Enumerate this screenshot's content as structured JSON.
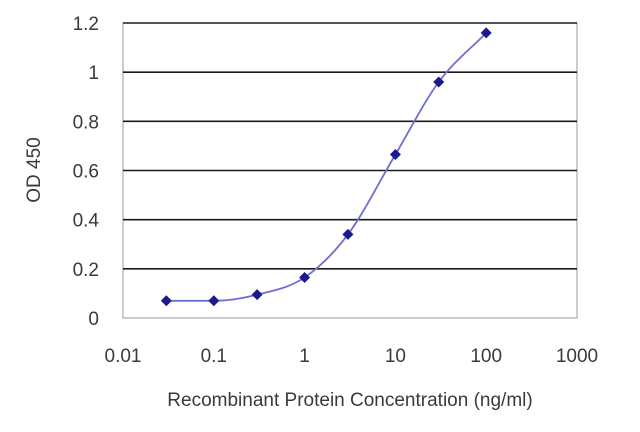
{
  "chart_data": {
    "type": "scatter",
    "xscale": "log",
    "xlim": [
      0.01,
      1000
    ],
    "ylim": [
      0,
      1.2
    ],
    "xlabel": "Recombinant Protein Concentration (ng/ml)",
    "ylabel": "OD 450",
    "grid": true,
    "x_ticks": [
      {
        "value": 0.01,
        "label": "0.01"
      },
      {
        "value": 0.1,
        "label": "0.1"
      },
      {
        "value": 1,
        "label": "1"
      },
      {
        "value": 10,
        "label": "10"
      },
      {
        "value": 100,
        "label": "100"
      },
      {
        "value": 1000,
        "label": "1000"
      }
    ],
    "y_ticks": [
      {
        "value": 0,
        "label": "0"
      },
      {
        "value": 0.2,
        "label": "0.2"
      },
      {
        "value": 0.4,
        "label": "0.4"
      },
      {
        "value": 0.6,
        "label": "0.6"
      },
      {
        "value": 0.8,
        "label": "0.8"
      },
      {
        "value": 1,
        "label": "1"
      },
      {
        "value": 1.2,
        "label": "1.2"
      }
    ],
    "series": [
      {
        "x": [
          0.03,
          0.1,
          0.3,
          1,
          3,
          10,
          30,
          100
        ],
        "y": [
          0.07,
          0.07,
          0.095,
          0.165,
          0.34,
          0.665,
          0.96,
          1.16
        ]
      }
    ],
    "fit_curve": true,
    "colors": {
      "series": "#1a1a8c",
      "curve": "#6f6fcf",
      "grid": "#1a1a1a",
      "frame": "#9a9a9a"
    }
  }
}
